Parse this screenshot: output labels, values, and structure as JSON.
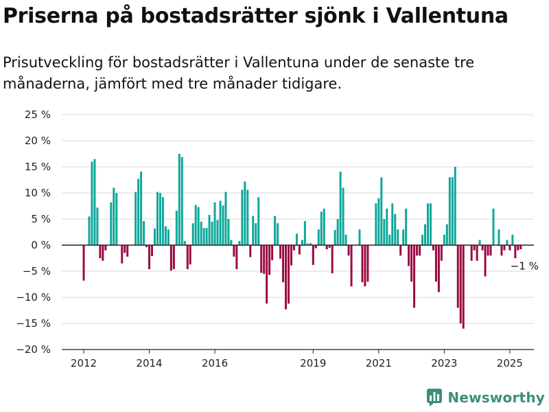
{
  "header": {
    "title": "Priserna på bostadsrätter sjönk i Vallentuna",
    "subtitle": "Prisutveckling för bostadsrätter i Vallentuna under de senaste tre månaderna, jämfört med tre månader tidigare."
  },
  "brand": {
    "name": "Newsworthy",
    "icon": "newsworthy-logo-icon"
  },
  "colors": {
    "positive": "#0ea79a",
    "negative": "#9a0a42",
    "grid": "#d9d9d9",
    "zero_line": "#222222"
  },
  "chart_data": {
    "type": "bar",
    "x_start": "2012-01",
    "x_end": "2025-06",
    "x_ticks": [
      {
        "x": "2012-01",
        "label": "2012"
      },
      {
        "x": "2014-01",
        "label": "2014"
      },
      {
        "x": "2016-01",
        "label": "2016"
      },
      {
        "x": "2019-01",
        "label": "2019"
      },
      {
        "x": "2021-01",
        "label": "2021"
      },
      {
        "x": "2023-01",
        "label": "2023"
      },
      {
        "x": "2025-01",
        "label": "2025"
      }
    ],
    "ylim": [
      -20,
      25
    ],
    "y_ticks": [
      {
        "value": 25,
        "label": "25 %"
      },
      {
        "value": 20,
        "label": "20 %"
      },
      {
        "value": 15,
        "label": "15 %"
      },
      {
        "value": 10,
        "label": "10 %"
      },
      {
        "value": 5,
        "label": "5 %"
      },
      {
        "value": 0,
        "label": "0 %"
      },
      {
        "value": -5,
        "label": "−5 %"
      },
      {
        "value": -10,
        "label": "−10 %"
      },
      {
        "value": -15,
        "label": "−15 %"
      },
      {
        "value": -20,
        "label": "−20 %"
      }
    ],
    "grid": true,
    "values": [
      -6.8,
      0,
      5.5,
      16,
      16.5,
      7.2,
      -2.5,
      -3,
      -1,
      0,
      8.2,
      11,
      10,
      0,
      -3.5,
      -1.5,
      -2.2,
      0,
      0,
      10.2,
      12.7,
      14.1,
      4.6,
      -0.4,
      -4.6,
      -2.1,
      3.2,
      10.2,
      10,
      9.2,
      3.6,
      3,
      -4.9,
      -4.6,
      6.6,
      17.5,
      16.9,
      0.8,
      -4.6,
      -3.7,
      4.2,
      7.7,
      7.3,
      4.5,
      3.3,
      3.3,
      5.8,
      4.5,
      8.2,
      4.8,
      8.5,
      7.6,
      10.2,
      5,
      1,
      -2.2,
      -4.6,
      0.8,
      10.6,
      12.2,
      10.6,
      -2.3,
      5.6,
      4.2,
      9.2,
      -5.3,
      -5.5,
      -11.2,
      -5.7,
      -2.9,
      5.6,
      4.2,
      -2.6,
      -7.1,
      -12.3,
      -11.2,
      -3.9,
      -1,
      2.2,
      -1.8,
      1,
      4.6,
      0.3,
      0.4,
      -3.8,
      -0.6,
      3,
      6.4,
      7,
      -0.8,
      -0.5,
      -5.4,
      2.9,
      5,
      14.1,
      11,
      2,
      -2,
      -7.9,
      0,
      0,
      3,
      -7.1,
      -7.9,
      -7,
      0,
      0,
      8,
      9,
      13,
      5,
      7,
      2,
      8,
      6,
      3,
      -2,
      3,
      7,
      -4,
      -7,
      -12,
      -2,
      -2,
      2,
      4,
      8,
      8,
      -1,
      -7,
      -9,
      -3,
      2,
      4,
      13,
      13,
      15,
      -12,
      -15,
      -16,
      0,
      0,
      -3,
      -1,
      -3,
      1,
      -1,
      -6,
      -2,
      -2,
      7,
      0,
      3,
      -2,
      -1,
      1,
      -1,
      2,
      -2.5,
      -1,
      -0.8
    ],
    "annotations": [
      {
        "index": 161,
        "text": "−1 %"
      }
    ]
  }
}
